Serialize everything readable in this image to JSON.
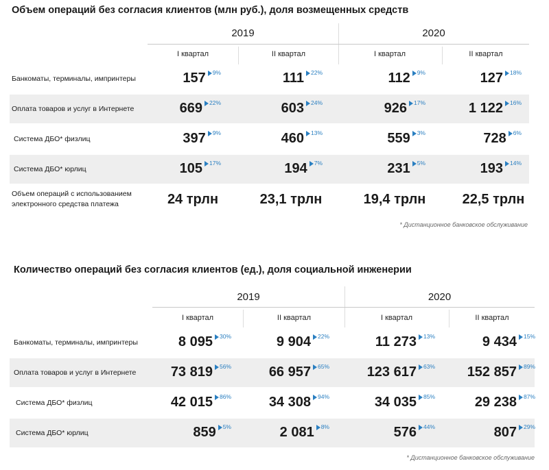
{
  "table1": {
    "title": "Объем операций без согласия клиентов (млн руб.), доля возмещенных средств",
    "years": [
      "2019",
      "2020"
    ],
    "quarters": [
      "I квартал",
      "II квартал",
      "I квартал",
      "II квартал"
    ],
    "rows": [
      {
        "label": "Банкоматы, терминалы, импринтеры",
        "cells": [
          {
            "value": "157",
            "delta": "9%"
          },
          {
            "value": "111",
            "delta": "22%"
          },
          {
            "value": "112",
            "delta": "9%"
          },
          {
            "value": "127",
            "delta": "18%"
          }
        ]
      },
      {
        "label": "Оплата товаров и услуг в Интернете",
        "cells": [
          {
            "value": "669",
            "delta": "22%"
          },
          {
            "value": "603",
            "delta": "24%"
          },
          {
            "value": "926",
            "delta": "17%"
          },
          {
            "value": "1 122",
            "delta": "16%"
          }
        ]
      },
      {
        "label": "Система ДБО* физлиц",
        "cells": [
          {
            "value": "397",
            "delta": "9%"
          },
          {
            "value": "460",
            "delta": "13%"
          },
          {
            "value": "559",
            "delta": "3%"
          },
          {
            "value": "728",
            "delta": "6%"
          }
        ]
      },
      {
        "label": "Система ДБО* юрлиц",
        "cells": [
          {
            "value": "105",
            "delta": "17%"
          },
          {
            "value": "194",
            "delta": "7%"
          },
          {
            "value": "231",
            "delta": "5%"
          },
          {
            "value": "193",
            "delta": "14%"
          }
        ]
      }
    ],
    "total_row": {
      "label_line1": "Объем операций с использованием",
      "label_line2": "электронного средства платежа",
      "values": [
        "24 трлн",
        "23,1 трлн",
        "19,4 трлн",
        "22,5 трлн"
      ]
    },
    "footnote": "* Дистанционное банковское обслуживание"
  },
  "table2": {
    "title": "Количество операций без согласия клиентов (ед.), доля социальной инженерии",
    "years": [
      "2019",
      "2020"
    ],
    "quarters": [
      "I квартал",
      "II квартал",
      "I квартал",
      "II квартал"
    ],
    "rows": [
      {
        "label": "Банкоматы, терминалы, импринтеры",
        "cells": [
          {
            "value": "8 095",
            "delta": "30%"
          },
          {
            "value": "9 904",
            "delta": "22%"
          },
          {
            "value": "11 273",
            "delta": "13%"
          },
          {
            "value": "9 434",
            "delta": "15%"
          }
        ]
      },
      {
        "label": "Оплата товаров и услуг в Интернете",
        "cells": [
          {
            "value": "73 819",
            "delta": "56%"
          },
          {
            "value": "66 957",
            "delta": "65%"
          },
          {
            "value": "123 617",
            "delta": "63%"
          },
          {
            "value": "152 857",
            "delta": "89%"
          }
        ]
      },
      {
        "label": "Система ДБО* физлиц",
        "cells": [
          {
            "value": "42 015",
            "delta": "86%"
          },
          {
            "value": "34 308",
            "delta": "94%"
          },
          {
            "value": "34 035",
            "delta": "85%"
          },
          {
            "value": "29 238",
            "delta": "87%"
          }
        ]
      },
      {
        "label": "Система ДБО* юрлиц",
        "cells": [
          {
            "value": "859",
            "delta": "5%"
          },
          {
            "value": "2 081",
            "delta": "8%"
          },
          {
            "value": "576",
            "delta": "44%"
          },
          {
            "value": "807",
            "delta": "29%"
          }
        ]
      }
    ],
    "footnote": "* Дистанционное банковское обслуживание"
  },
  "colors": {
    "accent": "#2a7fc1",
    "band": "#eeeeee",
    "rule": "#c8c8c8",
    "text": "#1a1a1a"
  }
}
